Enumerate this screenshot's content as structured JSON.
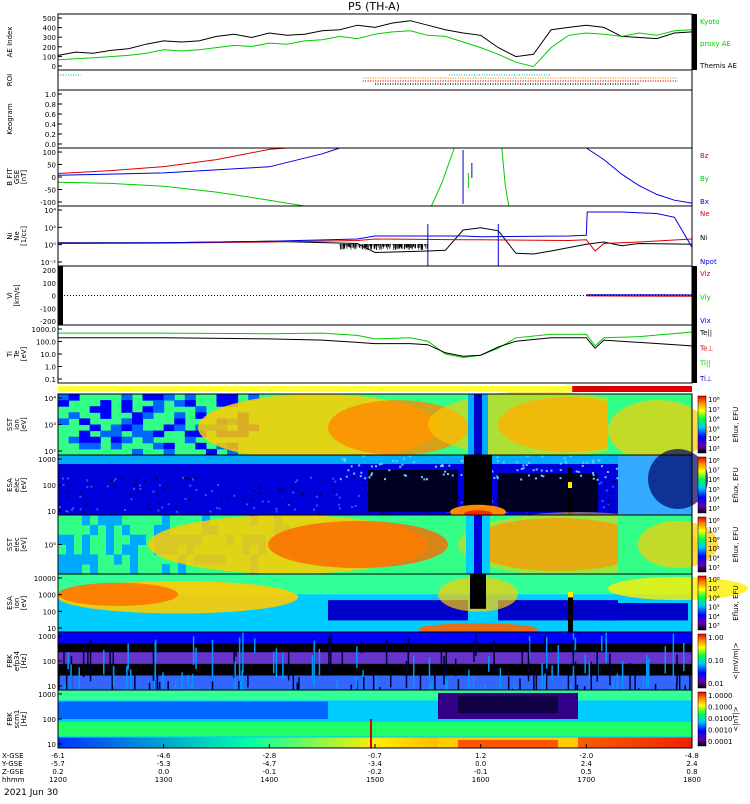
{
  "chart_data": {
    "type": "line",
    "title": "P5 (TH-A)",
    "date_label": "2021 Jun 30",
    "colors": {
      "black": "#000000",
      "green": "#00cc00",
      "red": "#dd0000",
      "blue": "#0000dd",
      "cyan": "#00c8c8",
      "orange": "#ff8c00",
      "bar_yellow": "#ffff33",
      "bar_red": "#dd0000"
    },
    "x_axis": {
      "rows": [
        {
          "label": "X-GSE",
          "values": [
            "-6.1",
            "-4.6",
            "-2.8",
            "-0.7",
            "1.2",
            "-2.0",
            "-4.8"
          ]
        },
        {
          "label": "Y-GSE",
          "values": [
            "-5.7",
            "-5.3",
            "-4.7",
            "-3.4",
            "0.0",
            "2.4",
            "2.4"
          ]
        },
        {
          "label": "Z-GSE",
          "values": [
            "0.2",
            "0.0",
            "-0.1",
            "-0.2",
            "-0.1",
            "0.5",
            "0.8"
          ]
        },
        {
          "label": "hhmm",
          "values": [
            "1200",
            "1300",
            "1400",
            "1500",
            "1600",
            "1700",
            "1800"
          ]
        }
      ]
    },
    "panels": [
      {
        "id": "ae",
        "ylabel": "AE Index",
        "yticks": [
          "500",
          "400",
          "300",
          "200",
          "100",
          "0"
        ],
        "legend": [
          {
            "text": "Kyoto",
            "color": "#00cc00"
          },
          {
            "text": "proxy AE",
            "color": "#00cc00"
          },
          {
            "text": "Themis AE",
            "color": "#000000"
          }
        ],
        "series": [
          {
            "color": "#000000",
            "t": [
              1200,
              1210,
              1220,
              1230,
              1240,
              1250,
              1300,
              1310,
              1320,
              1330,
              1340,
              1350,
              1400,
              1410,
              1420,
              1430,
              1440,
              1450,
              1500,
              1510,
              1520,
              1530,
              1540,
              1550,
              1600,
              1610,
              1620,
              1630,
              1640,
              1650,
              1700,
              1710,
              1720,
              1730,
              1740,
              1750,
              1800
            ],
            "v": [
              130,
              160,
              150,
              175,
              190,
              230,
              260,
              250,
              260,
              300,
              320,
              290,
              330,
              310,
              320,
              350,
              360,
              400,
              380,
              420,
              440,
              400,
              360,
              330,
              310,
              200,
              120,
              140,
              360,
              380,
              400,
              380,
              300,
              290,
              280,
              330,
              340
            ]
          },
          {
            "color": "#00cc00",
            "t": [
              1200,
              1210,
              1220,
              1230,
              1240,
              1250,
              1300,
              1310,
              1320,
              1330,
              1340,
              1350,
              1400,
              1410,
              1420,
              1430,
              1440,
              1450,
              1500,
              1510,
              1520,
              1530,
              1540,
              1550,
              1600,
              1610,
              1620,
              1630,
              1640,
              1650,
              1700,
              1710,
              1720,
              1730,
              1740,
              1750,
              1800
            ],
            "v": [
              90,
              100,
              110,
              120,
              130,
              150,
              180,
              170,
              180,
              200,
              220,
              210,
              240,
              230,
              260,
              270,
              300,
              280,
              320,
              340,
              350,
              310,
              300,
              250,
              200,
              140,
              70,
              30,
              200,
              310,
              330,
              320,
              300,
              330,
              310,
              350,
              360
            ]
          }
        ]
      },
      {
        "id": "roi",
        "ylabel": "ROI",
        "rows": [
          {
            "row": 0,
            "color": "#00c8c8",
            "t0": 1200,
            "t1": 1213
          },
          {
            "row": 0,
            "color": "#00c8c8",
            "t0": 1542,
            "t1": 1640
          },
          {
            "row": 1,
            "color": "#ff8c00",
            "t0": 1453,
            "t1": 1752
          },
          {
            "row": 2,
            "color": "#dd0000",
            "t0": 1453,
            "t1": 1752
          },
          {
            "row": 3,
            "color": "#000000",
            "t0": 1500,
            "t1": 1730
          }
        ]
      },
      {
        "id": "keo",
        "ylabel": "Keogram",
        "yticks": [
          "1.0",
          "0.8",
          "0.6",
          "0.4",
          "0.2",
          "0.0"
        ]
      },
      {
        "id": "bfit",
        "ylabel": "B FIT\nGSE\n[nT]",
        "yticks": [
          "100",
          "50",
          "0",
          "-50",
          "-100"
        ],
        "legend": [
          {
            "text": "Bz",
            "color": "#dd0000"
          },
          {
            "text": "By",
            "color": "#00cc00"
          },
          {
            "text": "Bx",
            "color": "#0000dd"
          }
        ],
        "ylim": [
          -100,
          100
        ],
        "series": [
          {
            "color": "#dd0000",
            "t": [
              1200,
              1230,
              1300,
              1330,
              1400,
              1410,
              1420
            ],
            "v": [
              12,
              22,
              36,
              60,
              95,
              100,
              100
            ]
          },
          {
            "color": "#00cc00",
            "t": [
              1200,
              1230,
              1300,
              1330,
              1400,
              1420,
              1430
            ],
            "v": [
              -18,
              -22,
              -32,
              -52,
              -80,
              -100,
              -100
            ]
          },
          {
            "color": "#0000dd",
            "t": [
              1200,
              1300,
              1400,
              1430,
              1440
            ],
            "v": [
              6,
              14,
              35,
              80,
              100
            ]
          },
          {
            "color": "#00cc00",
            "t": [
              1532,
              1538,
              1545
            ],
            "v": [
              -100,
              -20,
              100
            ]
          },
          {
            "color": "#00cc00",
            "t": [
              1612,
              1614,
              1616
            ],
            "v": [
              100,
              -30,
              -100
            ]
          },
          {
            "color": "#0000dd",
            "t": [
              1700,
              1710,
              1720,
              1730,
              1740,
              1750,
              1800
            ],
            "v": [
              100,
              60,
              10,
              -30,
              -60,
              -80,
              -90
            ]
          }
        ]
      },
      {
        "id": "ni",
        "ylabel": "Ni\nNe\n[1/cc]",
        "yticks": [
          "10⁴",
          "10²",
          "10⁰",
          "10⁻²"
        ],
        "legend": [
          {
            "text": "Ne",
            "color": "#dd0000"
          },
          {
            "text": "Ni",
            "color": "#000000"
          },
          {
            "text": "Npot",
            "color": "#0000dd"
          }
        ],
        "ylim": [
          -3,
          5
        ],
        "series": [
          {
            "color": "#000000",
            "t": [
              1200,
              1300,
              1400,
              1450,
              1500,
              1530,
              1540,
              1550,
              1560,
              1600,
              1610,
              1620,
              1630,
              1640,
              1700,
              1710,
              1720,
              1730,
              1800
            ],
            "v": [
              0.1,
              0.1,
              0.3,
              0.0,
              -1.2,
              -1.0,
              -0.9,
              1.8,
              2.1,
              2.1,
              1.7,
              -1.3,
              -1.4,
              -1.0,
              -0.1,
              0.2,
              -0.3,
              0.0,
              -0.1
            ]
          },
          {
            "color": "#dd0000",
            "t": [
              1200,
              1300,
              1400,
              1450,
              1500,
              1550,
              1600,
              1650,
              1700,
              1705,
              1710,
              1730,
              1800
            ],
            "v": [
              0.0,
              0.05,
              0.2,
              0.4,
              0.6,
              0.5,
              0.5,
              0.4,
              0.5,
              -1.0,
              0.0,
              0.2,
              0.6
            ]
          },
          {
            "color": "#0000dd",
            "t": [
              1200,
              1300,
              1400,
              1450,
              1500,
              1550,
              1600,
              1650,
              1700,
              1700.5,
              1720,
              1740,
              1750,
              1800
            ],
            "v": [
              0.05,
              0.1,
              0.3,
              0.6,
              1.0,
              1.0,
              0.9,
              1.0,
              1.1,
              4.2,
              4.2,
              4.0,
              3.5,
              -0.5
            ]
          }
        ]
      },
      {
        "id": "vi",
        "ylabel": "Vi\n[km/s]",
        "yticks": [
          "200",
          "100",
          "0",
          "-100",
          "-200"
        ],
        "legend": [
          {
            "text": "Viz",
            "color": "#dd0000"
          },
          {
            "text": "Viy",
            "color": "#00cc00"
          },
          {
            "text": "Vix",
            "color": "#0000dd"
          }
        ],
        "ylim": [
          -300,
          300
        ],
        "series": [
          {
            "color": "#00cc00",
            "t": [
              1700,
              1800
            ],
            "v": [
              0,
              -5
            ]
          },
          {
            "color": "#0000dd",
            "t": [
              1700,
              1800
            ],
            "v": [
              8,
              6
            ]
          },
          {
            "color": "#dd0000",
            "t": [
              1700,
              1800
            ],
            "v": [
              -4,
              -8
            ]
          }
        ]
      },
      {
        "id": "ti",
        "ylabel": "Ti\nTe\n[eV]",
        "yticks": [
          "1000.0",
          "100.0",
          "10.0",
          "1.0",
          "0.1"
        ],
        "legend": [
          {
            "text": "Te||",
            "color": "#000000"
          },
          {
            "text": "Te⊥",
            "color": "#dd0000"
          },
          {
            "text": "Ti||",
            "color": "#00cc00"
          },
          {
            "text": "Ti⊥",
            "color": "#0000dd"
          }
        ],
        "ylim": [
          -1,
          4
        ],
        "series": [
          {
            "color": "#00cc00",
            "t": [
              1200,
              1300,
              1400,
              1430,
              1450,
              1500,
              1520,
              1530,
              1540,
              1550,
              1600,
              1610,
              1620,
              1640,
              1700,
              1705,
              1710,
              1730,
              1800
            ],
            "v": [
              3.3,
              3.3,
              3.25,
              3.3,
              3.1,
              2.8,
              2.9,
              2.6,
              1.5,
              1.2,
              1.4,
              2.0,
              2.9,
              3.2,
              3.2,
              2.2,
              2.9,
              3.0,
              3.4
            ]
          },
          {
            "color": "#000000",
            "t": [
              1200,
              1300,
              1400,
              1430,
              1450,
              1500,
              1520,
              1530,
              1540,
              1550,
              1600,
              1610,
              1620,
              1640,
              1700,
              1705,
              1710,
              1730,
              1800
            ],
            "v": [
              2.9,
              2.9,
              2.8,
              2.7,
              2.5,
              2.4,
              2.4,
              2.3,
              1.6,
              1.3,
              1.4,
              2.1,
              2.6,
              2.9,
              2.9,
              2.0,
              2.7,
              2.5,
              2.2
            ]
          }
        ]
      },
      {
        "id": "sst1",
        "ylabel": "SST\nion\n[eV]",
        "yticks": [
          "10⁴",
          "10³",
          "10²"
        ],
        "cbticks": [
          "10⁸",
          "10⁷",
          "10⁶",
          "10⁵",
          "10⁴",
          "10³"
        ],
        "cblabel": "Eflux, EFU"
      },
      {
        "id": "esa1",
        "ylabel": "ESA\nelec\n[eV]",
        "yticks": [
          "1000",
          "100",
          "10"
        ],
        "cbticks": [
          "10⁸",
          "10⁷",
          "10⁶",
          "10⁵",
          "10⁴",
          "10³"
        ],
        "cblabel": "Eflux, EFU"
      },
      {
        "id": "sst2",
        "ylabel": "SST\nelec\n[eV]",
        "yticks": [
          "10⁵"
        ],
        "cbticks": [
          "10⁸",
          "10⁷",
          "10⁶",
          "10⁵",
          "10⁴",
          "10³"
        ],
        "cblabel": "Eflux, EFU"
      },
      {
        "id": "esa2",
        "ylabel": "ESA\nion\n[eV]",
        "yticks": [
          "10000",
          "1000",
          "100",
          "10"
        ],
        "cbticks": [
          "10⁸",
          "10⁷",
          "10⁶",
          "10⁵",
          "10⁴",
          "10³"
        ],
        "cblabel": "Eflux, EFU"
      },
      {
        "id": "fbk1",
        "ylabel": "FBK\nefp34\n[Hz]",
        "yticks": [
          "1000",
          "100",
          "10"
        ],
        "cbticks": [
          "1.00",
          "0.10",
          "0.01"
        ],
        "cblabel": "<|mV/m|>"
      },
      {
        "id": "fbk2",
        "ylabel": "FBK\nscm1\n[Hz]",
        "yticks": [
          "1000",
          "100",
          "10"
        ],
        "cbticks": [
          "1.0000",
          "0.1000",
          "0.0100",
          "0.0010",
          "0.0001"
        ],
        "cblabel": "<|nT|>"
      }
    ]
  }
}
